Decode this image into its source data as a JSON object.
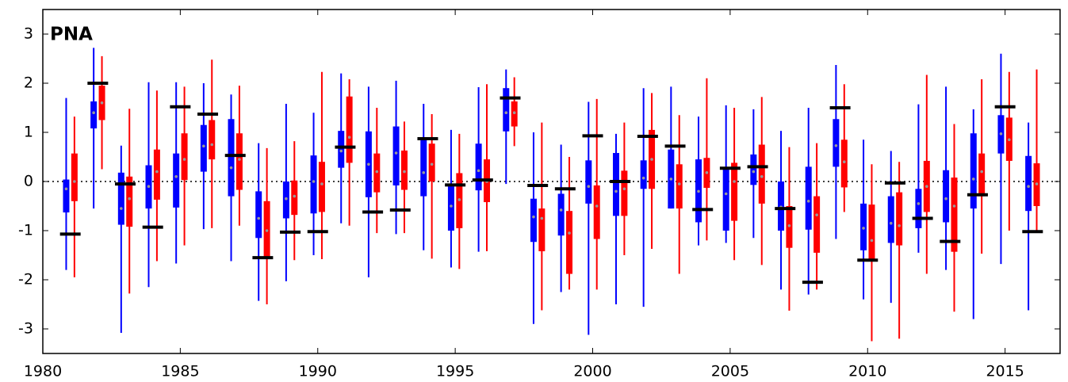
{
  "chart_data": {
    "type": "box",
    "label": "PNA",
    "x": [
      1981,
      1982,
      1983,
      1984,
      1985,
      1986,
      1987,
      1988,
      1989,
      1990,
      1991,
      1992,
      1993,
      1994,
      1995,
      1996,
      1997,
      1998,
      1999,
      2000,
      2001,
      2002,
      2003,
      2004,
      2005,
      2006,
      2007,
      2008,
      2009,
      2010,
      2011,
      2012,
      2013,
      2014,
      2015,
      2016
    ],
    "series": [
      {
        "color": "#0000ff",
        "low": [
          -1.8,
          -0.55,
          -3.08,
          -2.15,
          -1.67,
          -0.97,
          -1.62,
          -2.43,
          -2.03,
          -1.5,
          -0.85,
          -1.95,
          -1.07,
          -1.4,
          -1.75,
          -1.43,
          -0.05,
          -2.9,
          -2.25,
          -3.12,
          -2.5,
          -2.55,
          -0.55,
          -1.3,
          -1.25,
          -1.15,
          -2.2,
          -2.3,
          -1.17,
          -2.4,
          -2.47,
          -1.45,
          -1.8,
          -2.8,
          -1.68,
          -2.62
        ],
        "q1": [
          -0.63,
          1.08,
          -0.88,
          -0.55,
          -0.53,
          0.2,
          -0.3,
          -1.15,
          -0.75,
          -0.65,
          0.28,
          -0.32,
          -0.08,
          -0.3,
          -1.0,
          -0.18,
          1.02,
          -1.23,
          -1.1,
          -0.45,
          -0.7,
          -0.15,
          -0.55,
          -0.83,
          -1.0,
          -0.07,
          -1.0,
          -0.98,
          0.3,
          -1.4,
          -1.25,
          -0.95,
          -0.83,
          -0.55,
          0.57,
          -0.6
        ],
        "median": [
          -0.15,
          1.4,
          -0.55,
          -0.1,
          0.1,
          0.72,
          0.28,
          -0.75,
          -0.35,
          0.0,
          0.62,
          0.35,
          0.58,
          0.18,
          -0.5,
          0.22,
          1.4,
          -0.72,
          -0.58,
          -0.1,
          -0.2,
          0.07,
          0.05,
          -0.2,
          -0.25,
          0.2,
          -0.52,
          -0.4,
          0.73,
          -0.95,
          -0.85,
          -0.45,
          -0.35,
          0.05,
          0.97,
          -0.1
        ],
        "q3": [
          0.04,
          1.63,
          0.18,
          0.33,
          0.57,
          1.15,
          1.27,
          -0.2,
          0.0,
          0.53,
          1.03,
          1.02,
          1.12,
          0.88,
          -0.1,
          0.77,
          1.9,
          -0.35,
          -0.25,
          0.43,
          0.58,
          0.43,
          0.65,
          0.45,
          0.27,
          0.55,
          0.0,
          0.3,
          1.27,
          -0.45,
          -0.3,
          -0.15,
          0.23,
          0.98,
          1.35,
          0.52
        ],
        "high": [
          1.7,
          2.72,
          0.73,
          2.02,
          2.02,
          2.0,
          1.77,
          0.78,
          1.58,
          1.4,
          2.2,
          1.93,
          2.05,
          1.58,
          1.05,
          1.92,
          2.28,
          1.0,
          0.75,
          1.62,
          0.97,
          1.9,
          1.93,
          1.32,
          1.55,
          1.47,
          1.03,
          1.5,
          2.37,
          0.85,
          0.62,
          1.57,
          1.93,
          1.47,
          2.6,
          1.2
        ]
      },
      {
        "color": "#ff0000",
        "low": [
          -1.95,
          0.25,
          -2.28,
          -1.62,
          -1.3,
          -0.95,
          -0.9,
          -2.5,
          -1.6,
          -1.58,
          -0.9,
          -1.05,
          -1.05,
          -1.57,
          -1.78,
          -1.42,
          0.72,
          -2.62,
          -2.2,
          -2.2,
          -1.5,
          -1.37,
          -1.88,
          -1.2,
          -1.6,
          -1.7,
          -2.63,
          -2.2,
          -0.62,
          -3.25,
          -3.2,
          -1.88,
          -2.65,
          -1.47,
          -1.0,
          -1.0
        ],
        "q1": [
          -0.4,
          1.25,
          -0.92,
          -0.37,
          0.03,
          0.45,
          -0.17,
          -1.53,
          -0.68,
          -0.62,
          0.38,
          -0.22,
          -0.17,
          0.0,
          -0.95,
          -0.42,
          1.12,
          -1.42,
          -1.88,
          -1.17,
          -0.7,
          -0.15,
          -0.55,
          -0.13,
          -0.8,
          -0.45,
          -1.35,
          -1.45,
          -0.12,
          -1.58,
          -1.3,
          -0.62,
          -1.43,
          -0.3,
          0.42,
          -0.5
        ],
        "median": [
          0.0,
          1.6,
          -0.35,
          0.2,
          0.45,
          0.75,
          0.45,
          -1.0,
          -0.3,
          -0.05,
          0.9,
          0.2,
          0.2,
          0.35,
          -0.37,
          0.0,
          1.4,
          -0.75,
          -1.05,
          -0.5,
          -0.15,
          0.45,
          -0.05,
          0.18,
          0.0,
          0.1,
          -0.9,
          -0.68,
          0.4,
          -1.2,
          -0.9,
          -0.1,
          -0.5,
          0.2,
          0.85,
          -0.05
        ],
        "q3": [
          0.57,
          1.95,
          0.1,
          0.65,
          0.98,
          1.25,
          0.98,
          -0.4,
          0.02,
          0.4,
          1.73,
          0.57,
          0.63,
          0.77,
          0.17,
          0.45,
          1.63,
          -0.55,
          -0.6,
          -0.08,
          0.22,
          1.05,
          0.35,
          0.48,
          0.38,
          0.75,
          -0.5,
          -0.3,
          0.85,
          -0.47,
          -0.22,
          0.42,
          0.08,
          0.57,
          1.3,
          0.37
        ],
        "high": [
          1.32,
          2.55,
          1.48,
          1.85,
          1.93,
          2.48,
          1.95,
          0.68,
          0.82,
          2.23,
          2.08,
          1.5,
          1.22,
          1.37,
          0.97,
          1.98,
          2.12,
          1.2,
          0.5,
          1.68,
          1.2,
          1.8,
          1.35,
          2.1,
          1.5,
          1.72,
          0.7,
          0.78,
          1.98,
          0.35,
          0.4,
          2.17,
          1.17,
          2.08,
          2.23,
          2.28
        ]
      }
    ],
    "observed": {
      "color": "#000000",
      "values": [
        -1.07,
        2.0,
        -0.05,
        -0.93,
        1.52,
        1.37,
        0.53,
        -1.55,
        -1.03,
        -1.02,
        0.7,
        -0.62,
        -0.58,
        0.87,
        -0.07,
        0.03,
        1.7,
        -0.08,
        -0.15,
        0.93,
        0.0,
        0.92,
        0.72,
        -0.57,
        0.27,
        0.3,
        -0.55,
        -2.05,
        1.5,
        -1.6,
        -0.03,
        -0.75,
        -1.22,
        -0.27,
        1.52,
        -1.02
      ]
    },
    "median_color": "#999999",
    "xlim": [
      1980,
      2017
    ],
    "ylim": [
      -3.5,
      3.5
    ],
    "xticks": [
      1980,
      1985,
      1990,
      1995,
      2000,
      2005,
      2010,
      2015
    ],
    "yticks": [
      -3,
      -2,
      -1,
      0,
      1,
      2,
      3
    ],
    "zero_line": true
  }
}
